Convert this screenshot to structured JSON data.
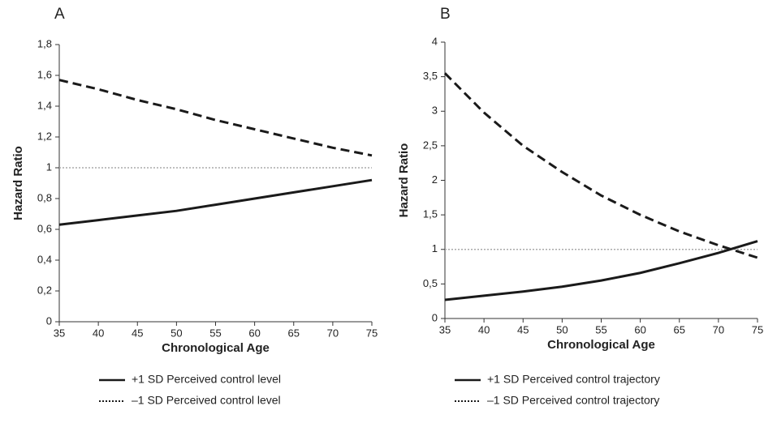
{
  "chart_data": [
    {
      "type": "line",
      "panel_label": "A",
      "xlabel": "Chronological Age",
      "ylabel": "Hazard Ratio",
      "x": [
        35,
        40,
        45,
        50,
        55,
        60,
        65,
        70,
        75
      ],
      "xlim": [
        35,
        75
      ],
      "xticks": [
        35,
        40,
        45,
        50,
        55,
        60,
        65,
        70,
        75
      ],
      "ylim": [
        0,
        1.8
      ],
      "yticks": [
        0,
        {
          "value": 0.2,
          "label": "0,2"
        },
        {
          "value": 0.4,
          "label": "0,4"
        },
        {
          "value": 0.6,
          "label": "0,6"
        },
        {
          "value": 0.8,
          "label": "0,8"
        },
        1,
        {
          "value": 1.2,
          "label": "1,2"
        },
        {
          "value": 1.4,
          "label": "1,4"
        },
        {
          "value": 1.6,
          "label": "1,6"
        },
        {
          "value": 1.8,
          "label": "1,8"
        }
      ],
      "reference_line": 1,
      "series": [
        {
          "name": "+1 SD Perceived control level",
          "color": "#1a1a1a",
          "style": "solid",
          "values": [
            0.63,
            0.66,
            0.69,
            0.72,
            0.76,
            0.8,
            0.84,
            0.88,
            0.92
          ]
        },
        {
          "name": "–1 SD Perceived control level",
          "color": "#1a1a1a",
          "style": "dashed",
          "values": [
            1.57,
            1.51,
            1.44,
            1.38,
            1.31,
            1.25,
            1.19,
            1.13,
            1.08
          ]
        }
      ]
    },
    {
      "type": "line",
      "panel_label": "B",
      "xlabel": "Chronological Age",
      "ylabel": "Hazard Ratio",
      "x": [
        35,
        40,
        45,
        50,
        55,
        60,
        65,
        70,
        75
      ],
      "xlim": [
        35,
        75
      ],
      "xticks": [
        35,
        40,
        45,
        50,
        55,
        60,
        65,
        70,
        75
      ],
      "ylim": [
        0,
        4
      ],
      "yticks": [
        0,
        {
          "value": 0.5,
          "label": "0,5"
        },
        1,
        {
          "value": 1.5,
          "label": "1,5"
        },
        2,
        {
          "value": 2.5,
          "label": "2,5"
        },
        3,
        {
          "value": 3.5,
          "label": "3,5"
        },
        4
      ],
      "reference_line": 1,
      "series": [
        {
          "name": "+1 SD Perceived control trajectory",
          "color": "#1a1a1a",
          "style": "solid",
          "values": [
            0.27,
            0.33,
            0.39,
            0.46,
            0.55,
            0.66,
            0.8,
            0.95,
            1.12
          ]
        },
        {
          "name": "–1 SD Perceived control trajectory",
          "color": "#1a1a1a",
          "style": "dashed",
          "values": [
            3.55,
            2.98,
            2.5,
            2.12,
            1.78,
            1.5,
            1.26,
            1.06,
            0.88
          ]
        }
      ]
    }
  ]
}
